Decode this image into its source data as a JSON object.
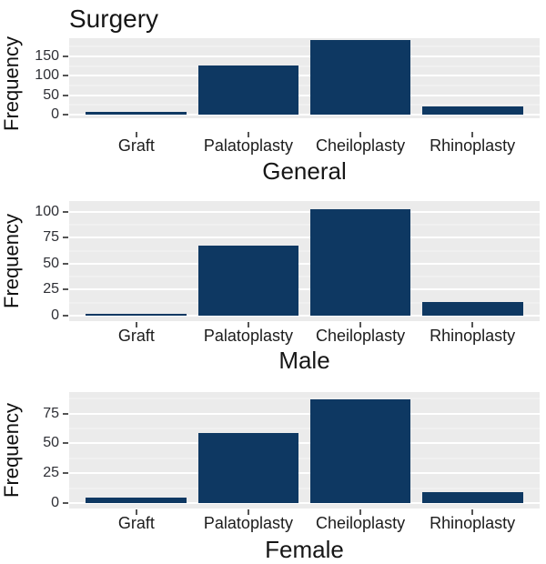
{
  "figure": {
    "title": "Surgery",
    "background": "#ffffff"
  },
  "colors": {
    "bar_fill": "#0e3862",
    "panel_background": "#ebebeb",
    "grid_major": "#ffffff",
    "grid_minor": "#f6f6f6",
    "tick_text": "#2e2f35",
    "tick_mark": "#555555",
    "label_text": "#161616"
  },
  "chart_data": [
    {
      "type": "bar",
      "title": "Surgery",
      "xlabel": "General",
      "ylabel": "Frequency",
      "categories": [
        "Graft",
        "Palatoplasty",
        "Cheiloplasty",
        "Rhinoplasty"
      ],
      "values": [
        8,
        127,
        192,
        21
      ],
      "yticks": [
        0,
        50,
        100,
        150
      ],
      "minor_step": 25,
      "ylim": [
        -9.6,
        201.6
      ],
      "grid": true,
      "legend": false
    },
    {
      "type": "bar",
      "title": "",
      "xlabel": "Male",
      "ylabel": "Frequency",
      "categories": [
        "Graft",
        "Palatoplasty",
        "Cheiloplasty",
        "Rhinoplasty"
      ],
      "values": [
        2,
        67,
        102,
        13
      ],
      "yticks": [
        0,
        25,
        50,
        75,
        100
      ],
      "minor_step": 12.5,
      "ylim": [
        -5.2,
        110.2
      ],
      "grid": true,
      "legend": false
    },
    {
      "type": "bar",
      "title": "",
      "xlabel": "Female",
      "ylabel": "Frequency",
      "categories": [
        "Graft",
        "Palatoplasty",
        "Cheiloplasty",
        "Rhinoplasty"
      ],
      "values": [
        5,
        59,
        87,
        9
      ],
      "yticks": [
        0,
        25,
        50,
        75
      ],
      "minor_step": 12.5,
      "ylim": [
        -4.4,
        92.9
      ],
      "grid": true,
      "legend": false
    }
  ]
}
